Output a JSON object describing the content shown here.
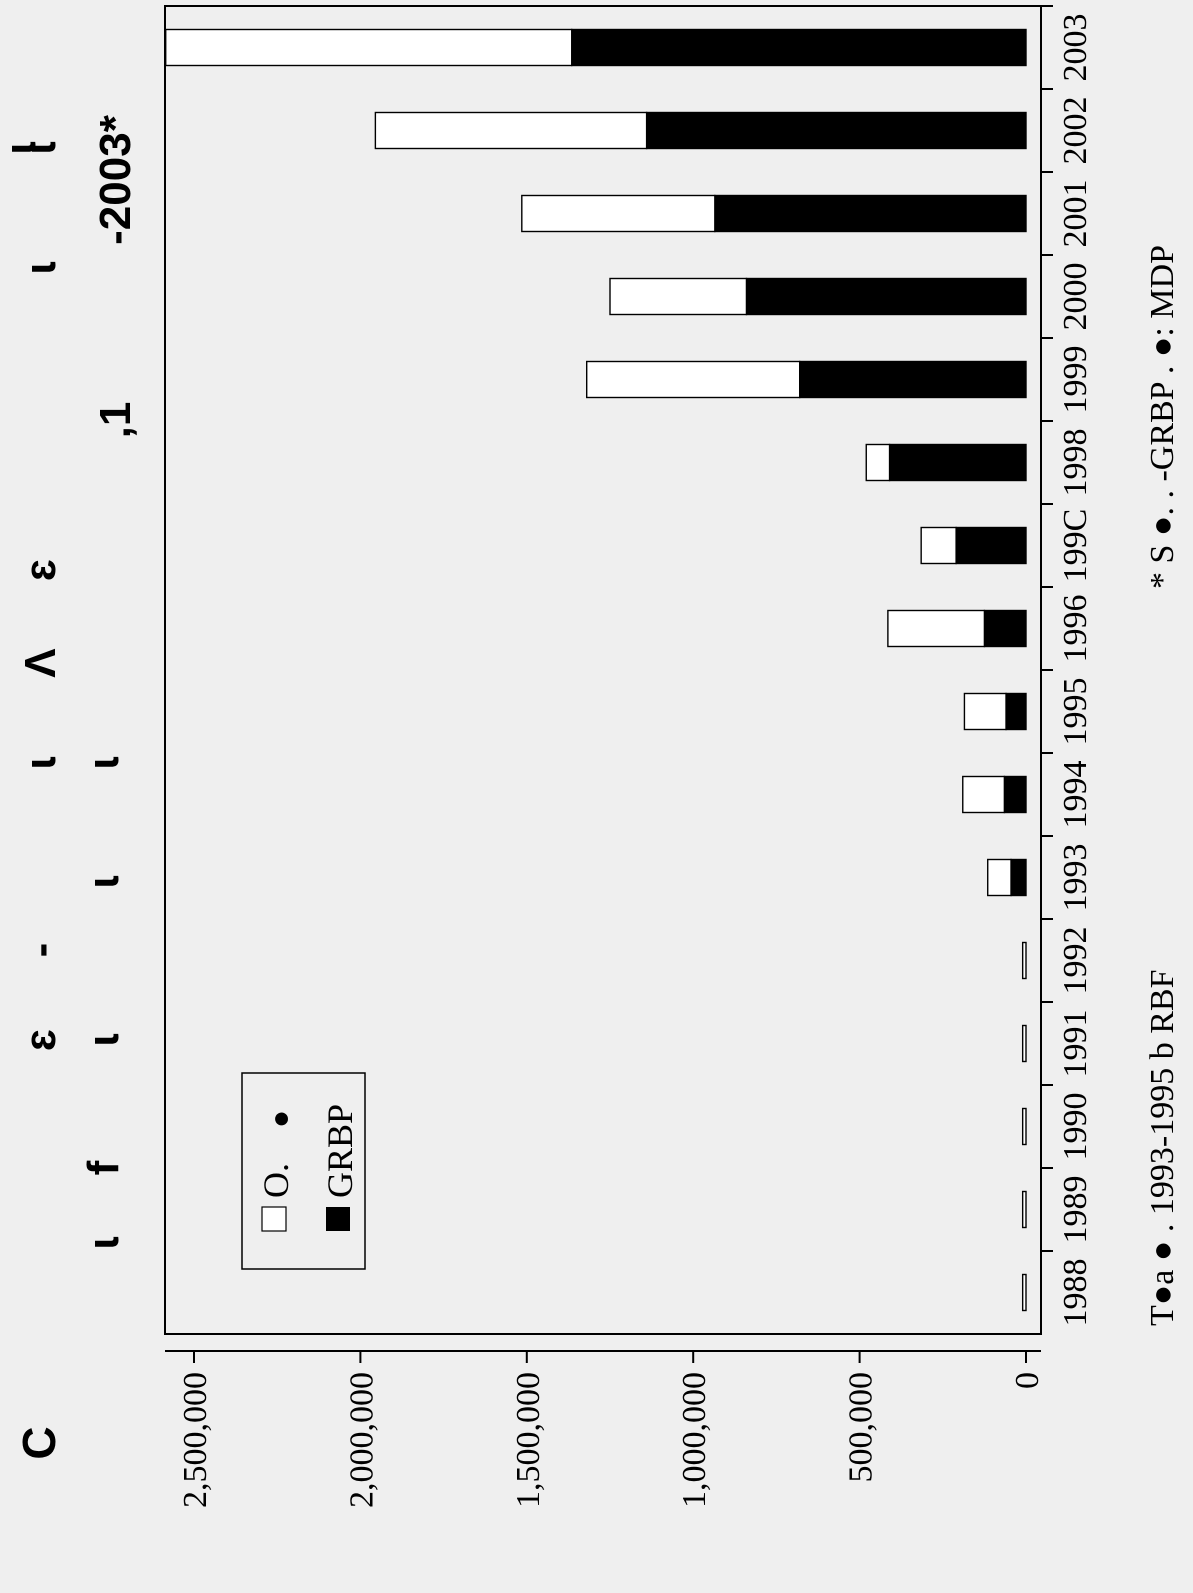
{
  "chart_data": {
    "type": "bar",
    "stacked": true,
    "orientation": "rotated-90",
    "categories": [
      "1988",
      "1989",
      "1990",
      "1991",
      "1992",
      "1993",
      "1994",
      "1995",
      "1996",
      "199C",
      "1998",
      "1999",
      "2000",
      "2001",
      "2002",
      "2003"
    ],
    "series": [
      {
        "name": "GRBP",
        "fill": "#000000",
        "values": [
          0,
          0,
          0,
          0,
          0,
          45000,
          65000,
          60000,
          125000,
          210000,
          410000,
          680000,
          840000,
          935000,
          1140000,
          1365000
        ]
      },
      {
        "name": "O.",
        "fill": "#ffffff",
        "values": [
          10000,
          10000,
          10000,
          10000,
          10000,
          70000,
          125000,
          125000,
          290000,
          105000,
          70000,
          640000,
          410000,
          580000,
          815000,
          1220000
        ]
      }
    ],
    "ylim": [
      0,
      2600000
    ],
    "ticks": [
      "0",
      "500,000",
      "1,000,000",
      "1,500,000",
      "2,000,000",
      "2,500,000"
    ],
    "tick_values": [
      0,
      500000,
      1000000,
      1500000,
      2000000,
      2500000
    ],
    "legend": {
      "placement": "top-left",
      "items": [
        {
          "label": "O.",
          "fill": "#ffffff",
          "marker": "●"
        },
        {
          "label": "GRBP",
          "fill": "#000000"
        }
      ]
    },
    "panel_label": "C",
    "title_fragments": [
      "ɩ",
      "f",
      "ɩ",
      "ɛ",
      "ɩ",
      "-",
      "ɩ",
      "ɩ",
      "ɩ",
      "ɩ",
      "Ʌ",
      "ɛ",
      "ɩ",
      ",1",
      "ɩ",
      "ɩ",
      "ɩ",
      "-2003*"
    ],
    "caption_left": "T●a ● . 1993-1995 b RBF",
    "caption_right": "* S ●. . -GRBP . ●: MDP"
  }
}
